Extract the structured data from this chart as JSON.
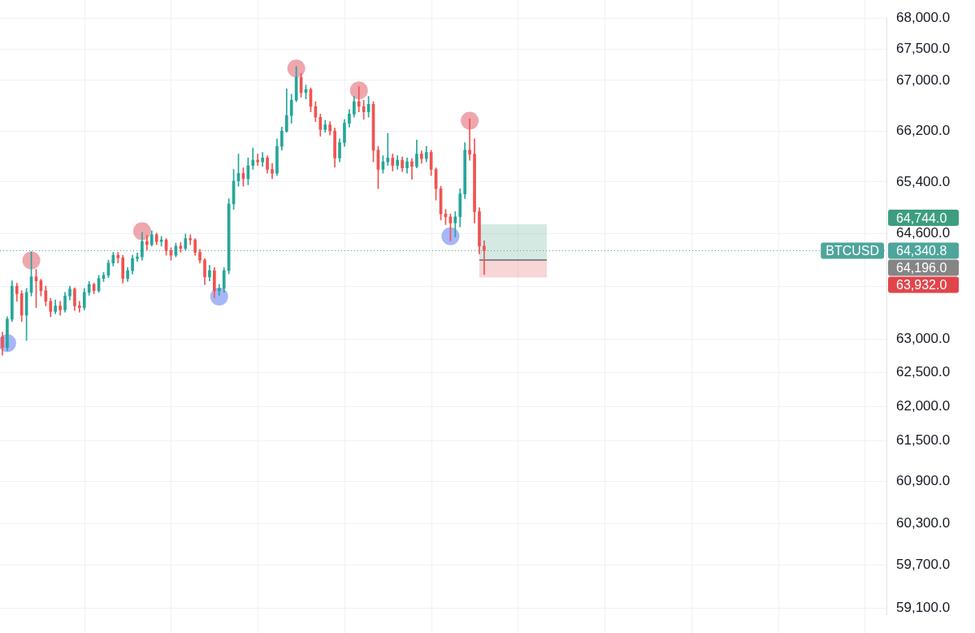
{
  "chart_data": {
    "type": "candlestick",
    "categories": [
      null,
      null,
      null,
      null,
      null,
      null,
      null,
      null,
      null,
      null,
      null,
      null,
      null,
      null,
      null,
      null,
      null,
      null,
      null,
      null,
      null,
      null,
      null,
      null,
      null,
      null,
      null,
      null,
      null,
      null,
      null,
      null,
      null,
      null,
      null,
      null,
      null,
      null,
      null,
      null,
      null,
      null,
      null,
      null,
      null,
      null,
      null,
      null,
      null,
      null,
      null,
      null,
      null,
      null,
      null,
      null,
      null,
      null,
      null,
      null,
      null,
      null,
      null,
      null,
      null,
      null,
      null,
      null,
      null,
      null,
      null,
      null,
      null,
      null,
      null,
      null,
      null,
      null,
      null,
      null,
      null,
      null,
      null,
      null,
      null,
      null,
      null,
      null,
      null,
      null,
      null,
      null,
      null,
      null,
      null,
      null,
      null,
      null,
      null,
      null,
      null,
      null,
      null,
      null,
      null,
      null,
      null,
      null,
      null,
      null,
      null,
      null,
      null,
      null,
      null,
      null,
      null,
      null,
      null,
      null,
      null,
      null,
      null,
      null,
      null,
      null,
      null,
      null,
      null,
      null,
      null,
      null,
      null,
      null,
      null,
      null,
      null,
      null,
      null,
      null,
      null,
      null,
      null,
      null,
      null,
      null,
      null,
      null,
      null,
      null,
      null,
      null,
      null,
      null,
      null,
      null,
      null,
      null,
      null,
      null,
      null,
      null,
      null,
      null,
      null,
      null,
      null,
      null,
      null,
      null,
      null,
      null,
      null,
      null,
      null,
      null,
      null,
      null,
      null,
      null,
      null,
      null,
      null,
      null
    ],
    "ohlc": [
      [
        63035,
        63105,
        62760,
        62875
      ],
      [
        62875,
        63335,
        62830,
        63300
      ],
      [
        63300,
        63880,
        63265,
        63800
      ],
      [
        63800,
        63845,
        63570,
        63685
      ],
      [
        63685,
        63730,
        63265,
        63360
      ],
      [
        63360,
        63765,
        62980,
        63705
      ],
      [
        63705,
        64325,
        63650,
        63940
      ],
      [
        63940,
        64055,
        63475,
        63880
      ],
      [
        63880,
        63905,
        63650,
        63730
      ],
      [
        63730,
        63800,
        63500,
        63570
      ],
      [
        63570,
        63615,
        63335,
        63415
      ],
      [
        63415,
        63590,
        63380,
        63500
      ],
      [
        63500,
        63570,
        63360,
        63440
      ],
      [
        63440,
        63705,
        63405,
        63650
      ],
      [
        63650,
        63800,
        63590,
        63755
      ],
      [
        63755,
        63775,
        63430,
        63500
      ],
      [
        63500,
        63570,
        63405,
        63475
      ],
      [
        63475,
        63765,
        63440,
        63705
      ],
      [
        63705,
        63870,
        63660,
        63825
      ],
      [
        63825,
        63845,
        63685,
        63730
      ],
      [
        63730,
        63965,
        63705,
        63915
      ],
      [
        63915,
        64010,
        63870,
        63965
      ],
      [
        63965,
        64195,
        63930,
        64150
      ],
      [
        64150,
        64315,
        64105,
        64270
      ],
      [
        64270,
        64315,
        64150,
        64230
      ],
      [
        64230,
        64270,
        63845,
        63915
      ],
      [
        63915,
        64080,
        63870,
        64035
      ],
      [
        64035,
        64270,
        63985,
        64220
      ],
      [
        64220,
        64305,
        64175,
        64245
      ],
      [
        64245,
        64620,
        64195,
        64480
      ],
      [
        64480,
        64575,
        64350,
        64430
      ],
      [
        64430,
        64645,
        64410,
        64585
      ],
      [
        64585,
        64610,
        64430,
        64480
      ],
      [
        64480,
        64560,
        64410,
        64505
      ],
      [
        64505,
        64525,
        64270,
        64340
      ],
      [
        64340,
        64385,
        64195,
        64270
      ],
      [
        64270,
        64455,
        64245,
        64410
      ],
      [
        64410,
        64465,
        64315,
        64375
      ],
      [
        64375,
        64595,
        64350,
        64525
      ],
      [
        64525,
        64585,
        64430,
        64505
      ],
      [
        64505,
        64525,
        64270,
        64315
      ],
      [
        64315,
        64360,
        64150,
        64195
      ],
      [
        64195,
        64220,
        63825,
        63940
      ],
      [
        63940,
        64115,
        63880,
        64035
      ],
      [
        64035,
        64080,
        63625,
        63730
      ],
      [
        63730,
        63825,
        63660,
        63765
      ],
      [
        63765,
        64080,
        63705,
        64035
      ],
      [
        64035,
        65140,
        63985,
        65060
      ],
      [
        65060,
        65595,
        64975,
        65415
      ],
      [
        65415,
        65835,
        65335,
        65535
      ],
      [
        65535,
        65620,
        65335,
        65450
      ],
      [
        65450,
        65775,
        65355,
        65655
      ],
      [
        65655,
        65930,
        65595,
        65740
      ],
      [
        65740,
        65835,
        65655,
        65715
      ],
      [
        65715,
        65860,
        65645,
        65775
      ],
      [
        65775,
        65810,
        65535,
        65595
      ],
      [
        65595,
        65690,
        65450,
        65535
      ],
      [
        65535,
        66075,
        65500,
        65955
      ],
      [
        65955,
        66260,
        65895,
        66195
      ],
      [
        66195,
        66865,
        66175,
        66440
      ],
      [
        66440,
        66780,
        66320,
        66685
      ],
      [
        66685,
        67220,
        66660,
        67050
      ],
      [
        67050,
        67110,
        66730,
        66805
      ],
      [
        66805,
        66925,
        66705,
        66855
      ],
      [
        66855,
        66880,
        66500,
        66585
      ],
      [
        66585,
        66660,
        66345,
        66415
      ],
      [
        66415,
        66465,
        66115,
        66220
      ],
      [
        66220,
        66365,
        66175,
        66295
      ],
      [
        66295,
        66345,
        66135,
        66195
      ],
      [
        66195,
        66245,
        65630,
        65775
      ],
      [
        65775,
        66075,
        65715,
        66015
      ],
      [
        66015,
        66380,
        65955,
        66320
      ],
      [
        66320,
        66535,
        66260,
        66465
      ],
      [
        66465,
        66745,
        66415,
        66660
      ],
      [
        66660,
        66900,
        66500,
        66585
      ],
      [
        66585,
        66685,
        66380,
        66500
      ],
      [
        66500,
        66745,
        66415,
        66620
      ],
      [
        66620,
        66660,
        65715,
        65895
      ],
      [
        65895,
        65955,
        65295,
        65595
      ],
      [
        65595,
        65810,
        65535,
        65715
      ],
      [
        65715,
        66160,
        65655,
        65775
      ],
      [
        65775,
        65835,
        65570,
        65655
      ],
      [
        65655,
        65810,
        65595,
        65740
      ],
      [
        65740,
        65790,
        65560,
        65620
      ],
      [
        65620,
        65775,
        65535,
        65715
      ],
      [
        65715,
        65765,
        65440,
        65645
      ],
      [
        65645,
        66055,
        65620,
        65835
      ],
      [
        65835,
        65885,
        65690,
        65765
      ],
      [
        65765,
        65955,
        65715,
        65860
      ],
      [
        65860,
        65895,
        65500,
        65595
      ],
      [
        65595,
        65620,
        65120,
        65295
      ],
      [
        65295,
        65335,
        64810,
        64905
      ],
      [
        64905,
        64975,
        64740,
        64860
      ],
      [
        64860,
        64905,
        64490,
        64765
      ],
      [
        64765,
        64940,
        64550,
        64860
      ],
      [
        64860,
        65295,
        64705,
        65215
      ],
      [
        65215,
        66015,
        65140,
        65895
      ],
      [
        65895,
        66390,
        65740,
        65835
      ],
      [
        65835,
        66075,
        64765,
        64940
      ],
      [
        64940,
        65000,
        64290,
        64410
      ],
      [
        64410,
        64490,
        63975,
        64340.8
      ],
      null,
      null,
      null,
      null,
      null,
      null,
      null,
      null,
      null,
      null,
      null,
      null,
      null,
      null,
      null,
      null,
      null,
      null,
      null,
      null,
      null,
      null,
      null,
      null,
      null,
      null,
      null,
      null,
      null,
      null,
      null,
      null,
      null,
      null,
      null,
      null,
      null,
      null,
      null,
      null,
      null,
      null,
      null,
      null,
      null,
      null,
      null,
      null,
      null,
      null,
      null,
      null,
      null,
      null,
      null,
      null,
      null,
      null,
      null,
      null,
      null,
      null,
      null,
      null,
      null,
      null,
      null,
      null,
      null,
      null,
      null,
      null,
      null,
      null,
      null,
      null,
      null,
      null,
      null,
      null,
      null,
      null,
      null
    ],
    "colors": [
      "#ef5350",
      "#26a69a",
      "#26a69a",
      "#ef5350",
      "#ef5350",
      "#26a69a",
      "#26a69a",
      "#ef5350",
      "#ef5350",
      "#ef5350",
      "#ef5350",
      "#26a69a",
      "#ef5350",
      "#26a69a",
      "#26a69a",
      "#ef5350",
      "#ef5350",
      "#26a69a",
      "#26a69a",
      "#ef5350",
      "#26a69a",
      "#26a69a",
      "#26a69a",
      "#26a69a",
      "#ef5350",
      "#ef5350",
      "#26a69a",
      "#26a69a",
      "#26a69a",
      "#26a69a",
      "#ef5350",
      "#26a69a",
      "#ef5350",
      "#26a69a",
      "#ef5350",
      "#ef5350",
      "#26a69a",
      "#ef5350",
      "#26a69a",
      "#ef5350",
      "#ef5350",
      "#ef5350",
      "#ef5350",
      "#26a69a",
      "#ef5350",
      "#26a69a",
      "#26a69a",
      "#26a69a",
      "#26a69a",
      "#26a69a",
      "#ef5350",
      "#26a69a",
      "#26a69a",
      "#ef5350",
      "#26a69a",
      "#ef5350",
      "#ef5350",
      "#26a69a",
      "#26a69a",
      "#26a69a",
      "#26a69a",
      "#26a69a",
      "#ef5350",
      "#26a69a",
      "#ef5350",
      "#ef5350",
      "#ef5350",
      "#26a69a",
      "#ef5350",
      "#ef5350",
      "#26a69a",
      "#26a69a",
      "#26a69a",
      "#26a69a",
      "#ef5350",
      "#ef5350",
      "#26a69a",
      "#ef5350",
      "#ef5350",
      "#26a69a",
      "#26a69a",
      "#ef5350",
      "#26a69a",
      "#ef5350",
      "#26a69a",
      "#ef5350",
      "#26a69a",
      "#ef5350",
      "#26a69a",
      "#ef5350",
      "#ef5350",
      "#ef5350",
      "#ef5350",
      "#ef5350",
      "#26a69a",
      "#26a69a",
      "#26a69a",
      "#ef5350",
      "#ef5350",
      "#ef5350",
      "#ef5350",
      null,
      null,
      null,
      null,
      null,
      null,
      null,
      null,
      null,
      null,
      null,
      null,
      null,
      null,
      null,
      null,
      null,
      null,
      null,
      null,
      null,
      null,
      null,
      null,
      null,
      null,
      null,
      null,
      null,
      null,
      null,
      null,
      null,
      null,
      null,
      null,
      null,
      null,
      null,
      null,
      null,
      null,
      null,
      null,
      null,
      null,
      null,
      null,
      null,
      null,
      null,
      null,
      null,
      null,
      null,
      null,
      null,
      null,
      null,
      null,
      null,
      null,
      null,
      null,
      null,
      null,
      null,
      null,
      null,
      null,
      null,
      null,
      null,
      null,
      null,
      null,
      null,
      null,
      null,
      null,
      null,
      null,
      null
    ],
    "series": [
      {
        "type": "scatter",
        "color": "#efa6ad",
        "values": [
          null,
          null,
          null,
          null,
          null,
          null,
          64190,
          null,
          null,
          null,
          null,
          null,
          null,
          null,
          null,
          null,
          null,
          null,
          null,
          null,
          null,
          null,
          null,
          null,
          null,
          null,
          null,
          null,
          null,
          64640,
          null,
          null,
          null,
          null,
          null,
          null,
          null,
          null,
          null,
          null,
          null,
          null,
          null,
          null,
          null,
          null,
          null,
          null,
          null,
          null,
          null,
          null,
          null,
          null,
          null,
          null,
          null,
          null,
          null,
          null,
          null,
          67190,
          null,
          null,
          null,
          null,
          null,
          null,
          null,
          null,
          null,
          null,
          null,
          null,
          66840,
          null,
          null,
          null,
          null,
          null,
          null,
          null,
          null,
          null,
          null,
          null,
          null,
          null,
          null,
          null,
          null,
          null,
          null,
          null,
          null,
          null,
          null,
          66360,
          null,
          null,
          null,
          null,
          null,
          null,
          null,
          null,
          null,
          null,
          null,
          null,
          null,
          null,
          null,
          null,
          null,
          null,
          null,
          null,
          null,
          null,
          null,
          null,
          null,
          null,
          null,
          null,
          null,
          null,
          null,
          null,
          null,
          null,
          null,
          null,
          null,
          null,
          null,
          null,
          null,
          null,
          null,
          null,
          null,
          null,
          null,
          null,
          null,
          null,
          null,
          null,
          null,
          null,
          null,
          null,
          null,
          null,
          null,
          null,
          null,
          null,
          null,
          null,
          null,
          null,
          null,
          null,
          null,
          null,
          null,
          null,
          null,
          null,
          null,
          null,
          null,
          null,
          null,
          null,
          null,
          null,
          null,
          null,
          null,
          null
        ]
      },
      {
        "type": "scatter",
        "color": "#a7b6f8",
        "values": [
          null,
          62940,
          null,
          null,
          null,
          null,
          null,
          null,
          null,
          null,
          null,
          null,
          null,
          null,
          null,
          null,
          null,
          null,
          null,
          null,
          null,
          null,
          null,
          null,
          null,
          null,
          null,
          null,
          null,
          null,
          null,
          null,
          null,
          null,
          null,
          null,
          null,
          null,
          null,
          null,
          null,
          null,
          null,
          null,
          null,
          63640,
          null,
          null,
          null,
          null,
          null,
          null,
          null,
          null,
          null,
          null,
          null,
          null,
          null,
          null,
          null,
          null,
          null,
          null,
          null,
          null,
          null,
          null,
          null,
          null,
          null,
          null,
          null,
          null,
          null,
          null,
          null,
          null,
          null,
          null,
          null,
          null,
          null,
          null,
          null,
          null,
          null,
          null,
          null,
          null,
          null,
          null,
          null,
          64560,
          null,
          null,
          null,
          null,
          null,
          null,
          null,
          null,
          null,
          null,
          null,
          null,
          null,
          null,
          null,
          null,
          null,
          null,
          null,
          null,
          null,
          null,
          null,
          null,
          null,
          null,
          null,
          null,
          null,
          null,
          null,
          null,
          null,
          null,
          null,
          null,
          null,
          null,
          null,
          null,
          null,
          null,
          null,
          null,
          null,
          null,
          null,
          null,
          null,
          null,
          null,
          null,
          null,
          null,
          null,
          null,
          null,
          null,
          null,
          null,
          null,
          null,
          null,
          null,
          null,
          null,
          null,
          null,
          null,
          null,
          null,
          null,
          null,
          null,
          null,
          null,
          null,
          null,
          null,
          null,
          null,
          null,
          null,
          null,
          null,
          null,
          null,
          null,
          null,
          null
        ]
      },
      {
        "type": "line",
        "color": "#858585",
        "marker": "none",
        "values": [
          null,
          null,
          null,
          null,
          null,
          null,
          null,
          null,
          null,
          null,
          null,
          null,
          null,
          null,
          null,
          null,
          null,
          null,
          null,
          null,
          null,
          null,
          null,
          null,
          null,
          null,
          null,
          null,
          null,
          null,
          null,
          null,
          null,
          null,
          null,
          null,
          null,
          null,
          null,
          null,
          null,
          null,
          null,
          null,
          null,
          null,
          null,
          null,
          null,
          null,
          null,
          null,
          null,
          null,
          null,
          null,
          null,
          null,
          null,
          null,
          null,
          null,
          null,
          null,
          null,
          null,
          null,
          null,
          null,
          null,
          null,
          null,
          null,
          null,
          null,
          null,
          null,
          null,
          null,
          null,
          null,
          null,
          null,
          null,
          null,
          null,
          null,
          null,
          null,
          null,
          null,
          null,
          null,
          null,
          null,
          null,
          null,
          null,
          null,
          64196,
          64196,
          64196,
          64196,
          64196,
          64196,
          64196,
          64196,
          64196,
          64196,
          64196,
          64196,
          64196,
          64196,
          64196,
          null,
          null,
          null,
          null,
          null,
          null,
          null,
          null,
          null,
          null,
          null,
          null,
          null,
          null,
          null,
          null,
          null,
          null,
          null,
          null,
          null,
          null,
          null,
          null,
          null,
          null,
          null,
          null,
          null,
          null,
          null,
          null,
          null,
          null,
          null,
          null,
          null,
          null,
          null,
          null,
          null,
          null,
          null,
          null,
          null,
          null,
          null,
          null,
          null,
          null,
          null,
          null,
          null,
          null,
          null,
          null,
          null,
          null,
          null,
          null,
          null,
          null,
          null,
          null,
          null,
          null,
          null,
          null,
          null,
          null
        ]
      }
    ],
    "marker": "circle",
    "log": true,
    "grid": true,
    "tick_labels": "y",
    "ylim": [
      59000,
      68000
    ],
    "yticks": [
      {
        "value": 59100,
        "label": "59,100.0"
      },
      {
        "value": 59700,
        "label": "59,700.0"
      },
      {
        "value": 60300,
        "label": "60,300.0"
      },
      {
        "value": 60900,
        "label": "60,900.0"
      },
      {
        "value": 61500,
        "label": "61,500.0"
      },
      {
        "value": 62000,
        "label": "62,000.0"
      },
      {
        "value": 62500,
        "label": "62,500.0"
      },
      {
        "value": 63000,
        "label": "63,000.0"
      },
      {
        "value": 63800,
        "label": null
      },
      {
        "value": 64600,
        "label": "64,600.0"
      },
      {
        "value": 65400,
        "label": "65,400.0"
      },
      {
        "value": 66200,
        "label": "66,200.0"
      },
      {
        "value": 67000,
        "label": "67,000.0"
      },
      {
        "value": 67500,
        "label": "67,500.0"
      },
      {
        "value": 68000,
        "label": "68,000.0"
      }
    ],
    "ref_lines": [
      {
        "axis": "y",
        "value": 64340.8,
        "label": "BTCUSD",
        "color": "#4ea59b",
        "line_style": "dotted"
      }
    ],
    "bands": [
      {
        "axis": "y",
        "from": 64196,
        "to": 64744,
        "color": "#3e9d81"
      },
      {
        "axis": "y",
        "from": 63932,
        "to": 64196,
        "color": "#e1454b"
      }
    ],
    "annotations": [
      "64,744.0",
      "64,340.8",
      "64,196.0",
      "63,932.0"
    ]
  }
}
